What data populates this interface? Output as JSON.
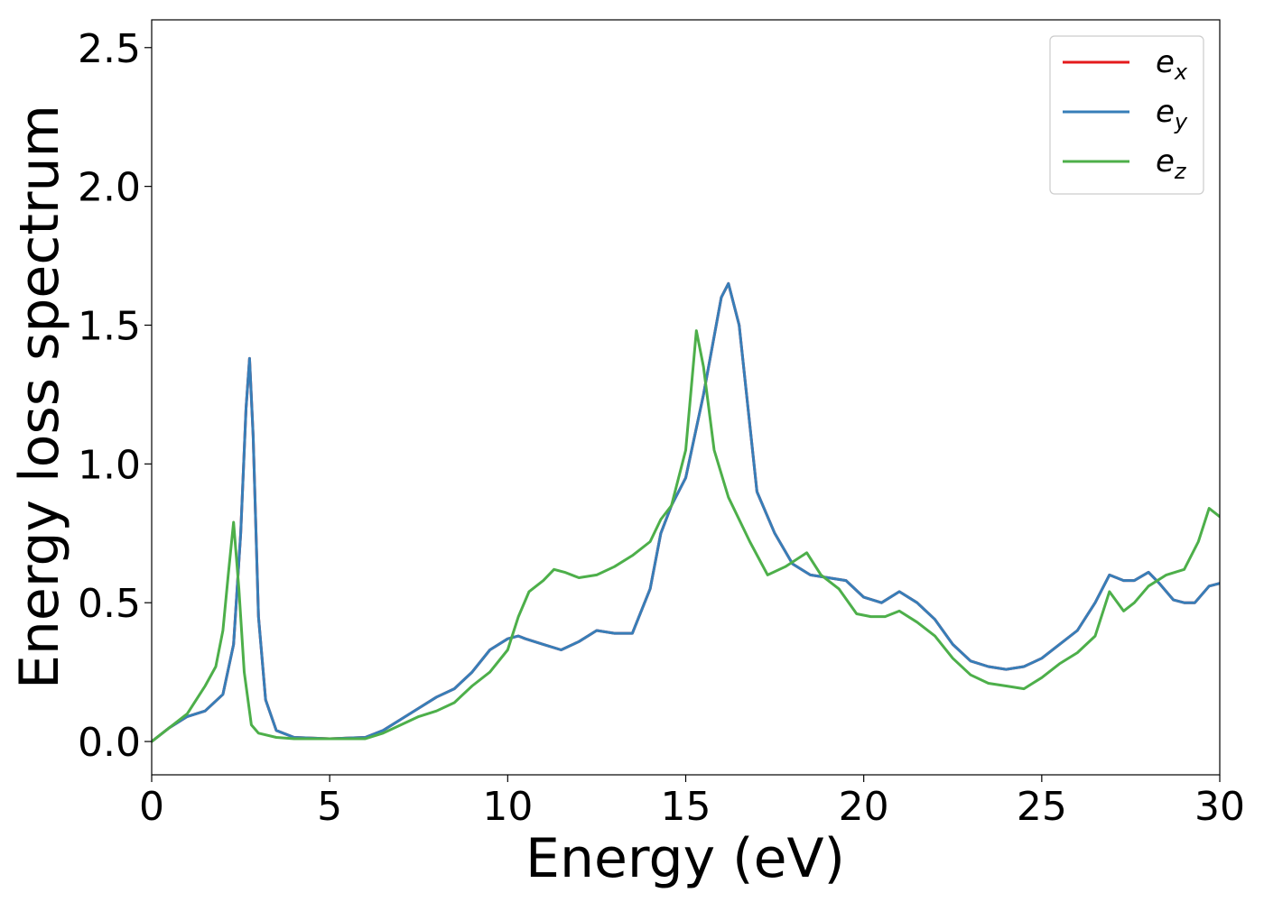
{
  "chart_data": {
    "type": "line",
    "xlabel": "Energy (eV)",
    "ylabel": "Energy loss spectrum",
    "xlim": [
      0,
      30
    ],
    "ylim": [
      -0.12,
      2.6
    ],
    "xticks": [
      0,
      5,
      10,
      15,
      20,
      25,
      30
    ],
    "xtick_labels": [
      "0",
      "5",
      "10",
      "15",
      "20",
      "25",
      "30"
    ],
    "yticks": [
      0.0,
      0.5,
      1.0,
      1.5,
      2.0,
      2.5
    ],
    "ytick_labels": [
      "0.0",
      "0.5",
      "1.0",
      "1.5",
      "2.0",
      "2.5"
    ],
    "grid": false,
    "legend_position": "top-right",
    "series": [
      {
        "name": "e",
        "subscript": "x",
        "color": "#e41a1c",
        "x": [
          0,
          0.5,
          1,
          1.5,
          2,
          2.3,
          2.5,
          2.65,
          2.75,
          2.85,
          3,
          3.2,
          3.5,
          4,
          5,
          6,
          6.5,
          7,
          7.5,
          8,
          8.5,
          9,
          9.5,
          10,
          10.3,
          10.5,
          11,
          11.5,
          12,
          12.5,
          13,
          13.5,
          14,
          14.3,
          14.6,
          15,
          15.5,
          16,
          16.2,
          16.5,
          17,
          17.5,
          18,
          18.5,
          19,
          19.5,
          20,
          20.5,
          21,
          21.5,
          22,
          22.5,
          23,
          23.5,
          24,
          24.5,
          25,
          25.5,
          26,
          26.5,
          26.9,
          27.3,
          27.6,
          28,
          28.3,
          28.7,
          29,
          29.3,
          29.7,
          30
        ],
        "y": [
          0.0,
          0.05,
          0.09,
          0.11,
          0.17,
          0.35,
          0.75,
          1.2,
          1.38,
          1.1,
          0.45,
          0.15,
          0.04,
          0.015,
          0.01,
          0.015,
          0.04,
          0.08,
          0.12,
          0.16,
          0.19,
          0.25,
          0.33,
          0.37,
          0.38,
          0.37,
          0.35,
          0.33,
          0.36,
          0.4,
          0.39,
          0.39,
          0.55,
          0.75,
          0.85,
          0.95,
          1.25,
          1.6,
          1.65,
          1.5,
          0.9,
          0.75,
          0.64,
          0.6,
          0.59,
          0.58,
          0.52,
          0.5,
          0.54,
          0.5,
          0.44,
          0.35,
          0.29,
          0.27,
          0.26,
          0.27,
          0.3,
          0.35,
          0.4,
          0.5,
          0.6,
          0.58,
          0.58,
          0.61,
          0.57,
          0.51,
          0.5,
          0.5,
          0.56,
          0.57
        ]
      },
      {
        "name": "e",
        "subscript": "y",
        "color": "#377eb8",
        "x": [
          0,
          0.5,
          1,
          1.5,
          2,
          2.3,
          2.5,
          2.65,
          2.75,
          2.85,
          3,
          3.2,
          3.5,
          4,
          5,
          6,
          6.5,
          7,
          7.5,
          8,
          8.5,
          9,
          9.5,
          10,
          10.3,
          10.5,
          11,
          11.5,
          12,
          12.5,
          13,
          13.5,
          14,
          14.3,
          14.6,
          15,
          15.5,
          16,
          16.2,
          16.5,
          17,
          17.5,
          18,
          18.5,
          19,
          19.5,
          20,
          20.5,
          21,
          21.5,
          22,
          22.5,
          23,
          23.5,
          24,
          24.5,
          25,
          25.5,
          26,
          26.5,
          26.9,
          27.3,
          27.6,
          28,
          28.3,
          28.7,
          29,
          29.3,
          29.7,
          30
        ],
        "y": [
          0.0,
          0.05,
          0.09,
          0.11,
          0.17,
          0.35,
          0.75,
          1.2,
          1.38,
          1.1,
          0.45,
          0.15,
          0.04,
          0.015,
          0.01,
          0.015,
          0.04,
          0.08,
          0.12,
          0.16,
          0.19,
          0.25,
          0.33,
          0.37,
          0.38,
          0.37,
          0.35,
          0.33,
          0.36,
          0.4,
          0.39,
          0.39,
          0.55,
          0.75,
          0.85,
          0.95,
          1.25,
          1.6,
          1.65,
          1.5,
          0.9,
          0.75,
          0.64,
          0.6,
          0.59,
          0.58,
          0.52,
          0.5,
          0.54,
          0.5,
          0.44,
          0.35,
          0.29,
          0.27,
          0.26,
          0.27,
          0.3,
          0.35,
          0.4,
          0.5,
          0.6,
          0.58,
          0.58,
          0.61,
          0.57,
          0.51,
          0.5,
          0.5,
          0.56,
          0.57
        ]
      },
      {
        "name": "e",
        "subscript": "z",
        "color": "#4daf4a",
        "x": [
          0,
          0.5,
          1,
          1.5,
          1.8,
          2.0,
          2.15,
          2.3,
          2.45,
          2.6,
          2.8,
          3,
          3.5,
          4,
          5,
          6,
          6.5,
          7,
          7.5,
          8,
          8.5,
          9,
          9.5,
          10,
          10.3,
          10.6,
          11,
          11.3,
          11.6,
          12,
          12.5,
          13,
          13.5,
          14,
          14.3,
          14.6,
          15,
          15.3,
          15.5,
          15.8,
          16.2,
          16.8,
          17.3,
          17.8,
          18.4,
          18.8,
          19.3,
          19.8,
          20.2,
          20.6,
          21,
          21.5,
          22,
          22.5,
          23,
          23.5,
          24,
          24.5,
          25,
          25.5,
          26,
          26.5,
          26.9,
          27.3,
          27.6,
          28,
          28.5,
          29,
          29.4,
          29.7,
          30
        ],
        "y": [
          0.0,
          0.05,
          0.1,
          0.2,
          0.27,
          0.4,
          0.6,
          0.79,
          0.55,
          0.25,
          0.06,
          0.03,
          0.015,
          0.01,
          0.01,
          0.01,
          0.03,
          0.06,
          0.09,
          0.11,
          0.14,
          0.2,
          0.25,
          0.33,
          0.45,
          0.54,
          0.58,
          0.62,
          0.61,
          0.59,
          0.6,
          0.63,
          0.67,
          0.72,
          0.8,
          0.85,
          1.05,
          1.48,
          1.35,
          1.05,
          0.88,
          0.72,
          0.6,
          0.63,
          0.68,
          0.6,
          0.55,
          0.46,
          0.45,
          0.45,
          0.47,
          0.43,
          0.38,
          0.3,
          0.24,
          0.21,
          0.2,
          0.19,
          0.23,
          0.28,
          0.32,
          0.38,
          0.54,
          0.47,
          0.5,
          0.56,
          0.6,
          0.62,
          0.72,
          0.84,
          0.81
        ]
      }
    ]
  }
}
